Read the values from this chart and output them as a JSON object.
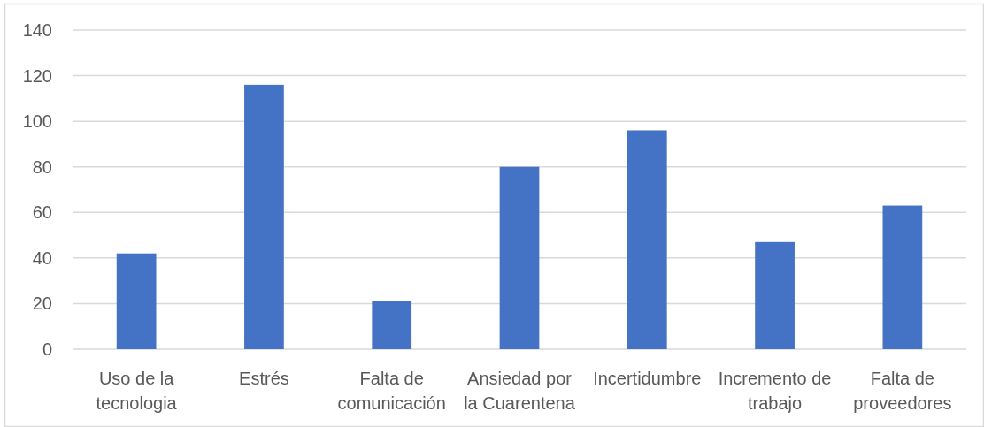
{
  "chart_data": {
    "type": "bar",
    "categories": [
      "Uso de la tecnologia",
      "Estrés",
      "Falta de comunicación",
      "Ansiedad por la Cuarentena",
      "Incertidumbre",
      "Incremento de trabajo",
      "Falta de proveedores"
    ],
    "values": [
      42,
      116,
      21,
      80,
      96,
      47,
      63
    ],
    "color": "#4472c4",
    "ylim": [
      0,
      140
    ],
    "yticks": [
      0,
      20,
      40,
      60,
      80,
      100,
      120,
      140
    ],
    "grid": "y"
  }
}
